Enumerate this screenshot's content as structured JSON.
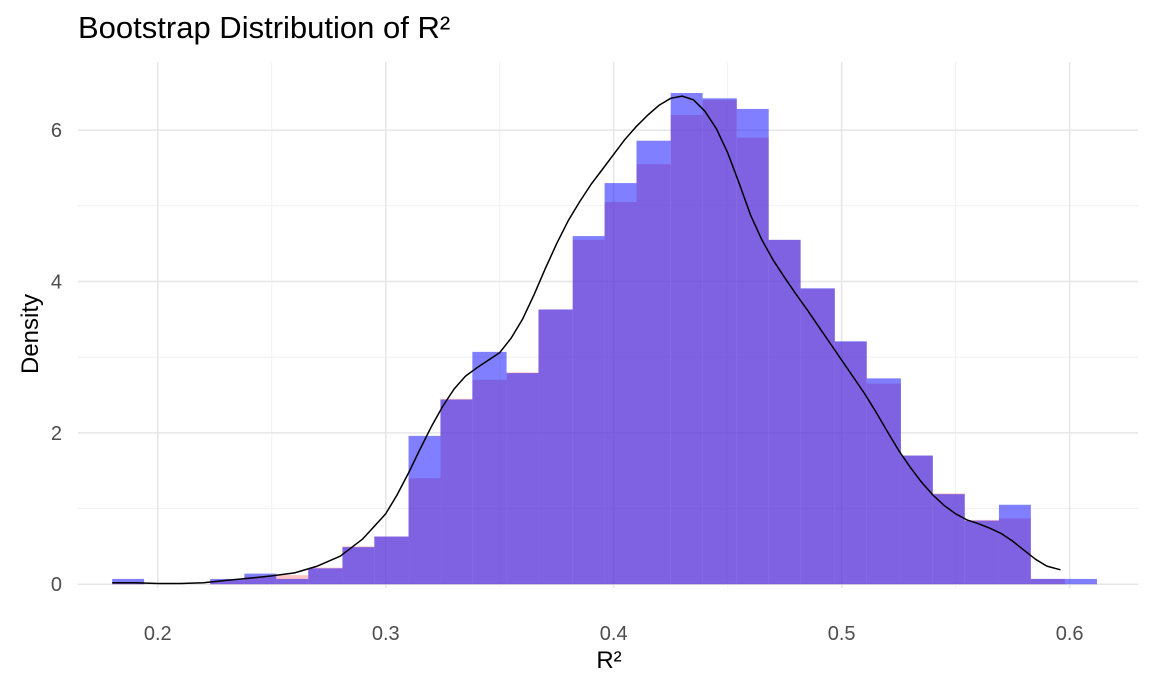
{
  "chart_data": {
    "type": "histogram",
    "title": "Bootstrap Distribution of R²",
    "xlabel": "R²",
    "ylabel": "Density",
    "xlim": [
      0.165,
      0.63
    ],
    "ylim": [
      -0.05,
      6.9
    ],
    "x_ticks": [
      {
        "value": 0.2,
        "label": "0.2"
      },
      {
        "value": 0.3,
        "label": "0.3"
      },
      {
        "value": 0.4,
        "label": "0.4"
      },
      {
        "value": 0.5,
        "label": "0.5"
      },
      {
        "value": 0.6,
        "label": "0.6"
      }
    ],
    "y_ticks": [
      {
        "value": 0,
        "label": "0"
      },
      {
        "value": 2,
        "label": "2"
      },
      {
        "value": 4,
        "label": "4"
      },
      {
        "value": 6,
        "label": "6"
      }
    ],
    "grid": true,
    "bin_width": 0.0144,
    "series": [
      {
        "color": "#ff8c8c",
        "opacity": 0.5,
        "bins": [
          {
            "x0": 0.18,
            "x1": 0.194,
            "y": 0.02
          },
          {
            "x0": 0.194,
            "x1": 0.209,
            "y": 0.0
          },
          {
            "x0": 0.209,
            "x1": 0.223,
            "y": 0.0
          },
          {
            "x0": 0.223,
            "x1": 0.238,
            "y": 0.05
          },
          {
            "x0": 0.238,
            "x1": 0.252,
            "y": 0.1
          },
          {
            "x0": 0.252,
            "x1": 0.266,
            "y": 0.12
          },
          {
            "x0": 0.266,
            "x1": 0.281,
            "y": 0.22
          },
          {
            "x0": 0.281,
            "x1": 0.295,
            "y": 0.5
          },
          {
            "x0": 0.295,
            "x1": 0.31,
            "y": 0.63
          },
          {
            "x0": 0.31,
            "x1": 0.324,
            "y": 1.4
          },
          {
            "x0": 0.324,
            "x1": 0.338,
            "y": 2.45
          },
          {
            "x0": 0.338,
            "x1": 0.353,
            "y": 2.7
          },
          {
            "x0": 0.353,
            "x1": 0.367,
            "y": 2.8
          },
          {
            "x0": 0.367,
            "x1": 0.382,
            "y": 3.63
          },
          {
            "x0": 0.382,
            "x1": 0.396,
            "y": 4.55
          },
          {
            "x0": 0.396,
            "x1": 0.41,
            "y": 5.05
          },
          {
            "x0": 0.41,
            "x1": 0.425,
            "y": 5.55
          },
          {
            "x0": 0.425,
            "x1": 0.439,
            "y": 6.2
          },
          {
            "x0": 0.439,
            "x1": 0.454,
            "y": 6.4
          },
          {
            "x0": 0.454,
            "x1": 0.468,
            "y": 5.9
          },
          {
            "x0": 0.468,
            "x1": 0.482,
            "y": 4.55
          },
          {
            "x0": 0.482,
            "x1": 0.497,
            "y": 3.9
          },
          {
            "x0": 0.497,
            "x1": 0.511,
            "y": 3.2
          },
          {
            "x0": 0.511,
            "x1": 0.526,
            "y": 2.65
          },
          {
            "x0": 0.526,
            "x1": 0.54,
            "y": 1.7
          },
          {
            "x0": 0.54,
            "x1": 0.554,
            "y": 1.2
          },
          {
            "x0": 0.554,
            "x1": 0.569,
            "y": 0.85
          },
          {
            "x0": 0.569,
            "x1": 0.583,
            "y": 0.87
          },
          {
            "x0": 0.583,
            "x1": 0.598,
            "y": 0.07
          }
        ]
      },
      {
        "color": "#0000ff",
        "opacity": 0.5,
        "bins": [
          {
            "x0": 0.18,
            "x1": 0.194,
            "y": 0.07
          },
          {
            "x0": 0.194,
            "x1": 0.209,
            "y": 0.0
          },
          {
            "x0": 0.209,
            "x1": 0.223,
            "y": 0.0
          },
          {
            "x0": 0.223,
            "x1": 0.238,
            "y": 0.07
          },
          {
            "x0": 0.238,
            "x1": 0.252,
            "y": 0.14
          },
          {
            "x0": 0.252,
            "x1": 0.266,
            "y": 0.07
          },
          {
            "x0": 0.266,
            "x1": 0.281,
            "y": 0.21
          },
          {
            "x0": 0.281,
            "x1": 0.295,
            "y": 0.49
          },
          {
            "x0": 0.295,
            "x1": 0.31,
            "y": 0.63
          },
          {
            "x0": 0.31,
            "x1": 0.324,
            "y": 1.96
          },
          {
            "x0": 0.324,
            "x1": 0.338,
            "y": 2.44
          },
          {
            "x0": 0.338,
            "x1": 0.353,
            "y": 3.07
          },
          {
            "x0": 0.353,
            "x1": 0.367,
            "y": 2.79
          },
          {
            "x0": 0.367,
            "x1": 0.382,
            "y": 3.63
          },
          {
            "x0": 0.382,
            "x1": 0.396,
            "y": 4.6
          },
          {
            "x0": 0.396,
            "x1": 0.41,
            "y": 5.3
          },
          {
            "x0": 0.41,
            "x1": 0.425,
            "y": 5.86
          },
          {
            "x0": 0.425,
            "x1": 0.439,
            "y": 6.49
          },
          {
            "x0": 0.439,
            "x1": 0.454,
            "y": 6.42
          },
          {
            "x0": 0.454,
            "x1": 0.468,
            "y": 6.28
          },
          {
            "x0": 0.468,
            "x1": 0.482,
            "y": 4.55
          },
          {
            "x0": 0.482,
            "x1": 0.497,
            "y": 3.91
          },
          {
            "x0": 0.497,
            "x1": 0.511,
            "y": 3.21
          },
          {
            "x0": 0.511,
            "x1": 0.526,
            "y": 2.72
          },
          {
            "x0": 0.526,
            "x1": 0.54,
            "y": 1.7
          },
          {
            "x0": 0.54,
            "x1": 0.554,
            "y": 1.19
          },
          {
            "x0": 0.554,
            "x1": 0.569,
            "y": 0.84
          },
          {
            "x0": 0.569,
            "x1": 0.583,
            "y": 1.05
          },
          {
            "x0": 0.583,
            "x1": 0.598,
            "y": 0.07
          },
          {
            "x0": 0.598,
            "x1": 0.612,
            "y": 0.07
          }
        ]
      },
      {
        "type": "line",
        "color": "#000000",
        "x": [
          0.18,
          0.19,
          0.2,
          0.21,
          0.22,
          0.23,
          0.24,
          0.25,
          0.26,
          0.27,
          0.28,
          0.29,
          0.3,
          0.305,
          0.31,
          0.315,
          0.32,
          0.325,
          0.33,
          0.335,
          0.34,
          0.345,
          0.35,
          0.355,
          0.36,
          0.365,
          0.37,
          0.375,
          0.38,
          0.385,
          0.39,
          0.395,
          0.4,
          0.405,
          0.41,
          0.415,
          0.42,
          0.425,
          0.43,
          0.435,
          0.44,
          0.445,
          0.45,
          0.455,
          0.46,
          0.465,
          0.47,
          0.475,
          0.48,
          0.485,
          0.49,
          0.495,
          0.5,
          0.505,
          0.51,
          0.515,
          0.52,
          0.525,
          0.53,
          0.535,
          0.54,
          0.545,
          0.55,
          0.555,
          0.56,
          0.565,
          0.57,
          0.575,
          0.58,
          0.585,
          0.59,
          0.596
        ],
        "y": [
          0.02,
          0.02,
          0.01,
          0.01,
          0.02,
          0.05,
          0.08,
          0.11,
          0.15,
          0.24,
          0.37,
          0.6,
          0.93,
          1.18,
          1.47,
          1.78,
          2.08,
          2.35,
          2.58,
          2.75,
          2.86,
          2.96,
          3.06,
          3.25,
          3.5,
          3.82,
          4.17,
          4.5,
          4.8,
          5.05,
          5.28,
          5.48,
          5.68,
          5.88,
          6.05,
          6.2,
          6.33,
          6.42,
          6.45,
          6.4,
          6.25,
          6.02,
          5.7,
          5.3,
          4.88,
          4.55,
          4.28,
          4.05,
          3.83,
          3.62,
          3.4,
          3.18,
          2.96,
          2.74,
          2.52,
          2.28,
          2.02,
          1.77,
          1.55,
          1.35,
          1.18,
          1.04,
          0.93,
          0.85,
          0.8,
          0.74,
          0.67,
          0.57,
          0.45,
          0.33,
          0.24,
          0.19
        ]
      }
    ]
  }
}
